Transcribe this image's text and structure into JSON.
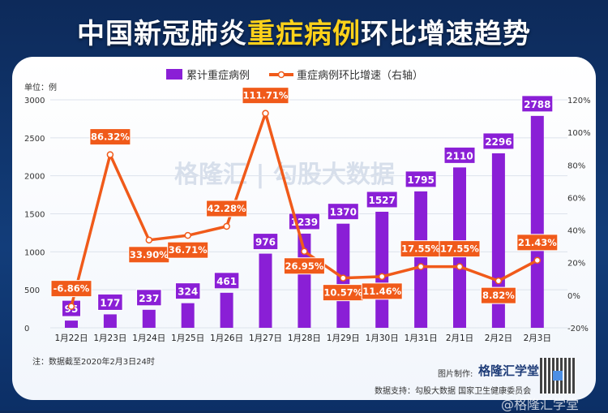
{
  "title_parts": [
    "中国新冠肺炎",
    "重症病例",
    "环比增速趋势"
  ],
  "unit_label": "单位：例",
  "note": "注：数据截至2020年2月3日24时",
  "maker_label": "图片制作:",
  "maker_logo": "格隆汇学堂",
  "source": "数据支持：勾股大数据 国家卫生健康委员会",
  "watermark": "格隆汇 | 勾股大数据",
  "weibo_watermark": "@格隆汇学堂",
  "colors": {
    "bar": "#8a1fd6",
    "line": "#f05a1a",
    "background": "#123d7a",
    "highlight": "#ffd21a"
  },
  "chart_data": {
    "type": "bar+line",
    "categories": [
      "1月22日",
      "1月23日",
      "1月24日",
      "1月25日",
      "1月26日",
      "1月27日",
      "1月28日",
      "1月29日",
      "1月30日",
      "1月31日",
      "2月1日",
      "2月2日",
      "2月3日"
    ],
    "series": [
      {
        "name": "累计重症病例",
        "type": "bar",
        "axis": "left",
        "values": [
          95,
          177,
          237,
          324,
          461,
          976,
          1239,
          1370,
          1527,
          1795,
          2110,
          2296,
          2788
        ],
        "labels": [
          "95",
          "177",
          "237",
          "324",
          "461",
          "976",
          "1239",
          "1370",
          "1527",
          "1795",
          "2110",
          "2296",
          "2788"
        ]
      },
      {
        "name": "重症病例环比增速（右轴）",
        "type": "line",
        "axis": "right",
        "values": [
          -6.86,
          86.32,
          33.9,
          36.71,
          42.28,
          111.71,
          26.95,
          10.57,
          11.46,
          17.55,
          17.55,
          8.82,
          21.43
        ],
        "labels": [
          "-6.86%",
          "86.32%",
          "33.90%",
          "36.71%",
          "42.28%",
          "111.71%",
          "26.95%",
          "10.57%",
          "11.46%",
          "17.55%",
          "17.55%",
          "8.82%",
          "21.43%"
        ]
      }
    ],
    "left_axis": {
      "ylim": [
        0,
        3000
      ],
      "ticks": [
        "0",
        "500",
        "1000",
        "1500",
        "2000",
        "2500",
        "3000"
      ]
    },
    "right_axis": {
      "ylim": [
        -20,
        120
      ],
      "ticks": [
        "-20%",
        "0%",
        "20%",
        "40%",
        "60%",
        "80%",
        "100%",
        "120%"
      ]
    },
    "grid": true,
    "legend": "top"
  }
}
